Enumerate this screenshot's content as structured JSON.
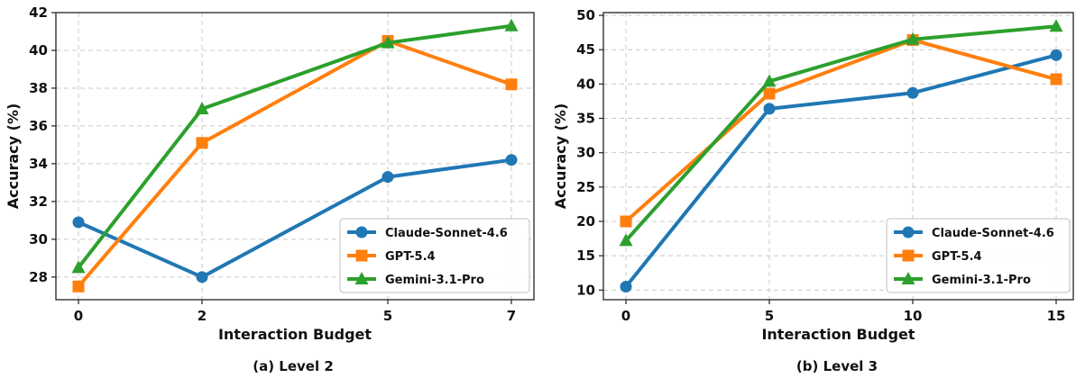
{
  "chart_data": [
    {
      "type": "line",
      "caption": "(a) Level 2",
      "xlabel": "Interaction Budget",
      "ylabel": "Accuracy (%)",
      "categories": [
        "0",
        "2",
        "5",
        "7"
      ],
      "ylim": [
        26.8,
        42
      ],
      "yticks": [
        28,
        30,
        32,
        34,
        36,
        38,
        40,
        42
      ],
      "grid": true,
      "legend_position": "lower-right",
      "series": [
        {
          "name": "Claude-Sonnet-4.6",
          "marker": "circle",
          "color": "#1f77b4",
          "values": [
            30.9,
            28.0,
            33.3,
            34.2
          ]
        },
        {
          "name": "GPT-5.4",
          "marker": "square",
          "color": "#ff7f0e",
          "values": [
            27.5,
            35.1,
            40.5,
            38.2
          ]
        },
        {
          "name": "Gemini-3.1-Pro",
          "marker": "triangle",
          "color": "#2ca02c",
          "values": [
            28.5,
            36.9,
            40.4,
            41.3
          ]
        }
      ]
    },
    {
      "type": "line",
      "caption": "(b) Level 3",
      "xlabel": "Interaction Budget",
      "ylabel": "Accuracy (%)",
      "categories": [
        "0",
        "5",
        "10",
        "15"
      ],
      "ylim": [
        8.6,
        50.4
      ],
      "yticks": [
        10,
        15,
        20,
        25,
        30,
        35,
        40,
        45,
        50
      ],
      "grid": true,
      "legend_position": "lower-right",
      "series": [
        {
          "name": "Claude-Sonnet-4.6",
          "marker": "circle",
          "color": "#1f77b4",
          "values": [
            10.5,
            36.4,
            38.7,
            44.2
          ]
        },
        {
          "name": "GPT-5.4",
          "marker": "square",
          "color": "#ff7f0e",
          "values": [
            20.0,
            38.6,
            46.4,
            40.7
          ]
        },
        {
          "name": "Gemini-3.1-Pro",
          "marker": "triangle",
          "color": "#2ca02c",
          "values": [
            17.2,
            40.4,
            46.5,
            48.4
          ]
        }
      ]
    }
  ]
}
